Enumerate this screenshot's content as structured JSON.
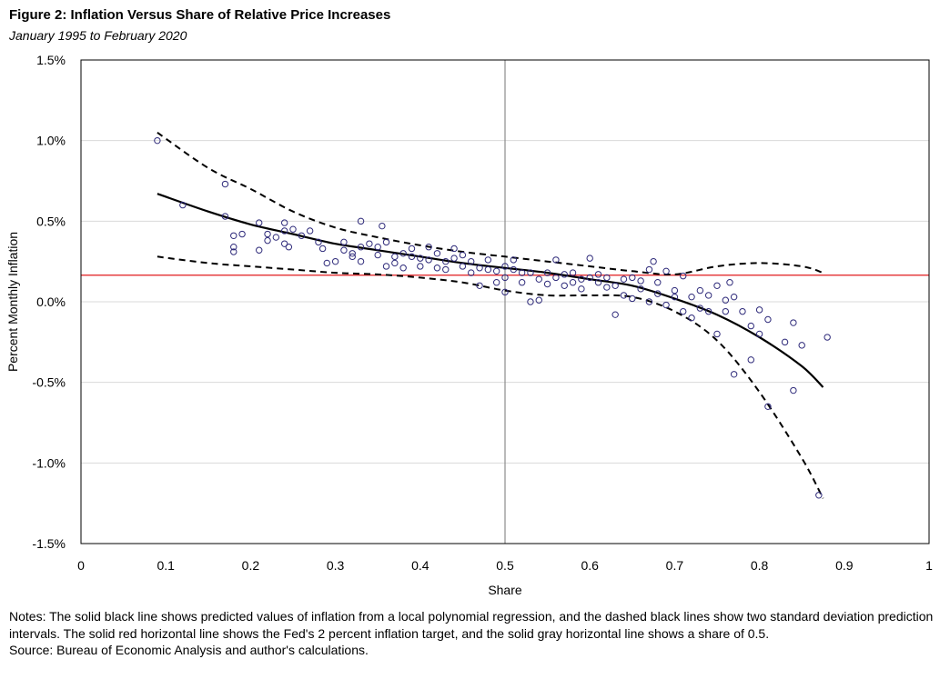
{
  "header": {
    "title": "Figure 2: Inflation Versus Share of Relative Price Increases",
    "subtitle": "January 1995 to February 2020"
  },
  "notes": {
    "text": "Notes: The solid black line shows predicted values of inflation from a local polynomial regression, and the dashed black lines show two standard deviation prediction intervals. The solid red horizontal line shows the Fed's 2 percent inflation target, and the solid gray horizontal line shows a share of 0.5.",
    "source": "Source: Bureau of Economic Analysis and author's calculations."
  },
  "colors": {
    "marker": "#2e2a7a",
    "target_line": "#e0191b",
    "share_line": "#8c8c8c",
    "fit_line": "#000000",
    "gridline": "#d9d9d9"
  },
  "chart_data": {
    "type": "scatter",
    "title": "Figure 2: Inflation Versus Share of Relative Price Increases",
    "subtitle": "January 1995 to February 2020",
    "xlabel": "Share",
    "ylabel": "Percent Monthly Inflation",
    "xlim": [
      0,
      1
    ],
    "ylim": [
      -1.5,
      1.5
    ],
    "x_ticks": [
      0,
      0.1,
      0.2,
      0.3,
      0.4,
      0.5,
      0.6,
      0.7,
      0.8,
      0.9,
      1
    ],
    "x_tick_labels": [
      "0",
      "0.1",
      "0.2",
      "0.3",
      "0.4",
      "0.5",
      "0.6",
      "0.7",
      "0.8",
      "0.9",
      "1"
    ],
    "y_ticks": [
      -1.5,
      -1.0,
      -0.5,
      0.0,
      0.5,
      1.0,
      1.5
    ],
    "y_tick_labels": [
      "-1.5%",
      "-1.0%",
      "-0.5%",
      "0.0%",
      "0.5%",
      "1.0%",
      "1.5%"
    ],
    "grid": "horizontal",
    "reference_lines": [
      {
        "name": "Fed 2 percent inflation target",
        "orientation": "horizontal",
        "value": 0.165,
        "color": "#e0191b"
      },
      {
        "name": "Share of 0.5",
        "orientation": "vertical",
        "value": 0.5,
        "color": "#8c8c8c"
      }
    ],
    "series": [
      {
        "name": "Monthly observations",
        "style": "open-circle",
        "points": [
          [
            0.09,
            1.0
          ],
          [
            0.12,
            0.6
          ],
          [
            0.17,
            0.73
          ],
          [
            0.17,
            0.53
          ],
          [
            0.18,
            0.41
          ],
          [
            0.18,
            0.34
          ],
          [
            0.18,
            0.31
          ],
          [
            0.19,
            0.42
          ],
          [
            0.21,
            0.49
          ],
          [
            0.21,
            0.32
          ],
          [
            0.22,
            0.38
          ],
          [
            0.22,
            0.42
          ],
          [
            0.23,
            0.4
          ],
          [
            0.24,
            0.49
          ],
          [
            0.24,
            0.44
          ],
          [
            0.24,
            0.36
          ],
          [
            0.245,
            0.34
          ],
          [
            0.25,
            0.45
          ],
          [
            0.26,
            0.41
          ],
          [
            0.27,
            0.44
          ],
          [
            0.28,
            0.37
          ],
          [
            0.285,
            0.33
          ],
          [
            0.29,
            0.24
          ],
          [
            0.3,
            0.25
          ],
          [
            0.31,
            0.37
          ],
          [
            0.31,
            0.32
          ],
          [
            0.32,
            0.3
          ],
          [
            0.32,
            0.28
          ],
          [
            0.33,
            0.5
          ],
          [
            0.33,
            0.34
          ],
          [
            0.33,
            0.25
          ],
          [
            0.34,
            0.36
          ],
          [
            0.35,
            0.29
          ],
          [
            0.35,
            0.34
          ],
          [
            0.355,
            0.47
          ],
          [
            0.36,
            0.37
          ],
          [
            0.36,
            0.22
          ],
          [
            0.37,
            0.24
          ],
          [
            0.37,
            0.28
          ],
          [
            0.38,
            0.3
          ],
          [
            0.38,
            0.21
          ],
          [
            0.39,
            0.33
          ],
          [
            0.39,
            0.28
          ],
          [
            0.4,
            0.22
          ],
          [
            0.4,
            0.27
          ],
          [
            0.41,
            0.34
          ],
          [
            0.41,
            0.26
          ],
          [
            0.42,
            0.21
          ],
          [
            0.42,
            0.3
          ],
          [
            0.43,
            0.25
          ],
          [
            0.43,
            0.2
          ],
          [
            0.44,
            0.27
          ],
          [
            0.44,
            0.33
          ],
          [
            0.45,
            0.22
          ],
          [
            0.45,
            0.29
          ],
          [
            0.46,
            0.18
          ],
          [
            0.46,
            0.25
          ],
          [
            0.47,
            0.21
          ],
          [
            0.47,
            0.1
          ],
          [
            0.48,
            0.2
          ],
          [
            0.48,
            0.26
          ],
          [
            0.49,
            0.12
          ],
          [
            0.49,
            0.19
          ],
          [
            0.5,
            0.22
          ],
          [
            0.5,
            0.06
          ],
          [
            0.5,
            0.15
          ],
          [
            0.51,
            0.2
          ],
          [
            0.51,
            0.26
          ],
          [
            0.52,
            0.12
          ],
          [
            0.52,
            0.18
          ],
          [
            0.53,
            0.0
          ],
          [
            0.53,
            0.18
          ],
          [
            0.54,
            0.01
          ],
          [
            0.54,
            0.14
          ],
          [
            0.55,
            0.18
          ],
          [
            0.55,
            0.11
          ],
          [
            0.56,
            0.26
          ],
          [
            0.56,
            0.15
          ],
          [
            0.57,
            0.1
          ],
          [
            0.57,
            0.17
          ],
          [
            0.58,
            0.12
          ],
          [
            0.58,
            0.18
          ],
          [
            0.59,
            0.14
          ],
          [
            0.59,
            0.08
          ],
          [
            0.6,
            0.27
          ],
          [
            0.6,
            0.15
          ],
          [
            0.61,
            0.12
          ],
          [
            0.61,
            0.17
          ],
          [
            0.62,
            0.09
          ],
          [
            0.62,
            0.15
          ],
          [
            0.63,
            -0.08
          ],
          [
            0.63,
            0.1
          ],
          [
            0.64,
            0.14
          ],
          [
            0.64,
            0.04
          ],
          [
            0.65,
            0.15
          ],
          [
            0.65,
            0.02
          ],
          [
            0.66,
            0.08
          ],
          [
            0.66,
            0.13
          ],
          [
            0.67,
            0.0
          ],
          [
            0.67,
            0.2
          ],
          [
            0.675,
            0.25
          ],
          [
            0.68,
            0.05
          ],
          [
            0.68,
            0.12
          ],
          [
            0.69,
            0.19
          ],
          [
            0.69,
            -0.02
          ],
          [
            0.7,
            0.07
          ],
          [
            0.7,
            0.03
          ],
          [
            0.71,
            0.16
          ],
          [
            0.71,
            -0.06
          ],
          [
            0.72,
            0.03
          ],
          [
            0.72,
            -0.1
          ],
          [
            0.73,
            0.07
          ],
          [
            0.73,
            -0.04
          ],
          [
            0.74,
            0.04
          ],
          [
            0.74,
            -0.06
          ],
          [
            0.75,
            0.1
          ],
          [
            0.75,
            -0.2
          ],
          [
            0.76,
            0.01
          ],
          [
            0.76,
            -0.06
          ],
          [
            0.765,
            0.12
          ],
          [
            0.77,
            0.03
          ],
          [
            0.77,
            -0.45
          ],
          [
            0.78,
            -0.06
          ],
          [
            0.79,
            -0.36
          ],
          [
            0.79,
            -0.15
          ],
          [
            0.8,
            -0.2
          ],
          [
            0.8,
            -0.05
          ],
          [
            0.81,
            -0.65
          ],
          [
            0.81,
            -0.11
          ],
          [
            0.83,
            -0.25
          ],
          [
            0.84,
            -0.55
          ],
          [
            0.84,
            -0.13
          ],
          [
            0.85,
            -0.27
          ],
          [
            0.87,
            -1.2
          ],
          [
            0.88,
            -0.22
          ]
        ]
      },
      {
        "name": "Local polynomial fit",
        "style": "solid",
        "points": [
          [
            0.09,
            0.67
          ],
          [
            0.15,
            0.56
          ],
          [
            0.2,
            0.48
          ],
          [
            0.25,
            0.42
          ],
          [
            0.3,
            0.36
          ],
          [
            0.35,
            0.32
          ],
          [
            0.4,
            0.28
          ],
          [
            0.45,
            0.24
          ],
          [
            0.5,
            0.21
          ],
          [
            0.55,
            0.18
          ],
          [
            0.6,
            0.14
          ],
          [
            0.65,
            0.1
          ],
          [
            0.7,
            0.02
          ],
          [
            0.75,
            -0.08
          ],
          [
            0.8,
            -0.22
          ],
          [
            0.85,
            -0.4
          ],
          [
            0.875,
            -0.53
          ]
        ]
      },
      {
        "name": "Upper prediction interval",
        "style": "dashed",
        "points": [
          [
            0.09,
            1.05
          ],
          [
            0.15,
            0.83
          ],
          [
            0.2,
            0.7
          ],
          [
            0.25,
            0.56
          ],
          [
            0.3,
            0.46
          ],
          [
            0.35,
            0.4
          ],
          [
            0.4,
            0.35
          ],
          [
            0.45,
            0.31
          ],
          [
            0.5,
            0.28
          ],
          [
            0.55,
            0.25
          ],
          [
            0.6,
            0.22
          ],
          [
            0.65,
            0.19
          ],
          [
            0.7,
            0.17
          ],
          [
            0.75,
            0.22
          ],
          [
            0.8,
            0.24
          ],
          [
            0.85,
            0.22
          ],
          [
            0.875,
            0.18
          ]
        ]
      },
      {
        "name": "Lower prediction interval",
        "style": "dashed",
        "points": [
          [
            0.09,
            0.28
          ],
          [
            0.15,
            0.24
          ],
          [
            0.2,
            0.22
          ],
          [
            0.25,
            0.2
          ],
          [
            0.3,
            0.18
          ],
          [
            0.35,
            0.17
          ],
          [
            0.4,
            0.15
          ],
          [
            0.45,
            0.12
          ],
          [
            0.5,
            0.07
          ],
          [
            0.55,
            0.04
          ],
          [
            0.6,
            0.04
          ],
          [
            0.65,
            0.03
          ],
          [
            0.7,
            -0.06
          ],
          [
            0.75,
            -0.24
          ],
          [
            0.8,
            -0.56
          ],
          [
            0.85,
            -0.97
          ],
          [
            0.875,
            -1.22
          ]
        ]
      }
    ]
  }
}
